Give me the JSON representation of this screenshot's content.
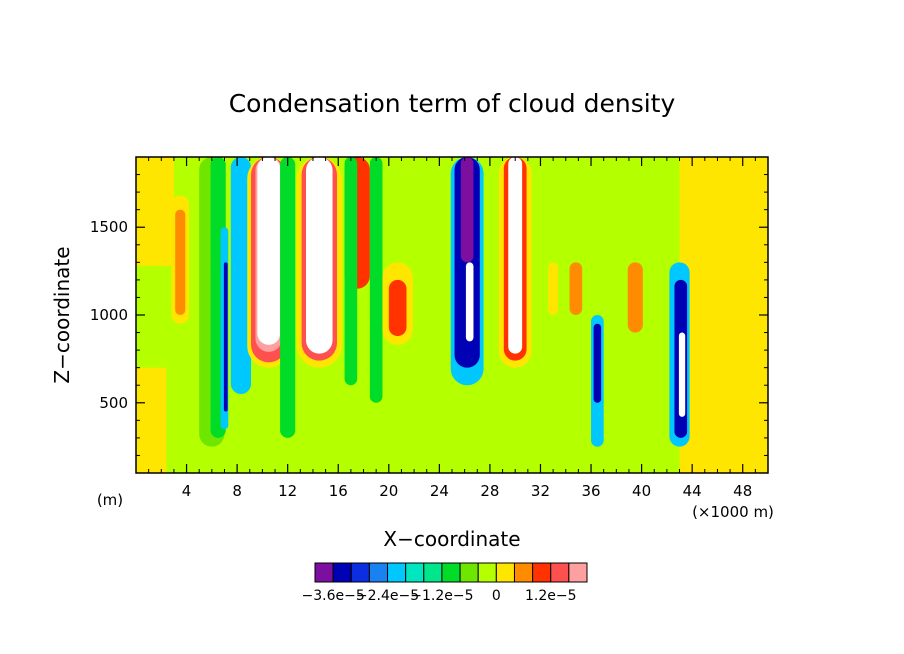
{
  "chart_data": {
    "type": "heatmap",
    "title": "Condensation term of cloud density",
    "xlabel": "X−coordinate",
    "ylabel": "Z−coordinate",
    "x_unit_left": "(m)",
    "x_unit_right": "(×1000 m)",
    "xlim": [
      0,
      50
    ],
    "ylim": [
      100,
      1900
    ],
    "x_ticks": [
      "4",
      "8",
      "12",
      "16",
      "20",
      "24",
      "28",
      "32",
      "36",
      "40",
      "44",
      "48"
    ],
    "x_tick_values": [
      4,
      8,
      12,
      16,
      20,
      24,
      28,
      32,
      36,
      40,
      44,
      48
    ],
    "y_ticks": [
      "500",
      "1000",
      "1500"
    ],
    "y_tick_values": [
      500,
      1000,
      1500
    ],
    "colorbar": {
      "colors": [
        "#7c0ea0",
        "#0000b4",
        "#0a2ee0",
        "#1a82f0",
        "#00c8ff",
        "#00e6c0",
        "#00e68c",
        "#00dc28",
        "#6ee600",
        "#b4ff00",
        "#ffe600",
        "#ff8c00",
        "#ff3200",
        "#ff5050",
        "#ffa0a0"
      ],
      "labels": [
        "−3.6e−5",
        "−2.4e−5",
        "−1.2e−5",
        "0",
        "1.2e−5"
      ]
    },
    "colors": {
      "background": "#b4ff00",
      "overflow": "#ffffff"
    }
  }
}
